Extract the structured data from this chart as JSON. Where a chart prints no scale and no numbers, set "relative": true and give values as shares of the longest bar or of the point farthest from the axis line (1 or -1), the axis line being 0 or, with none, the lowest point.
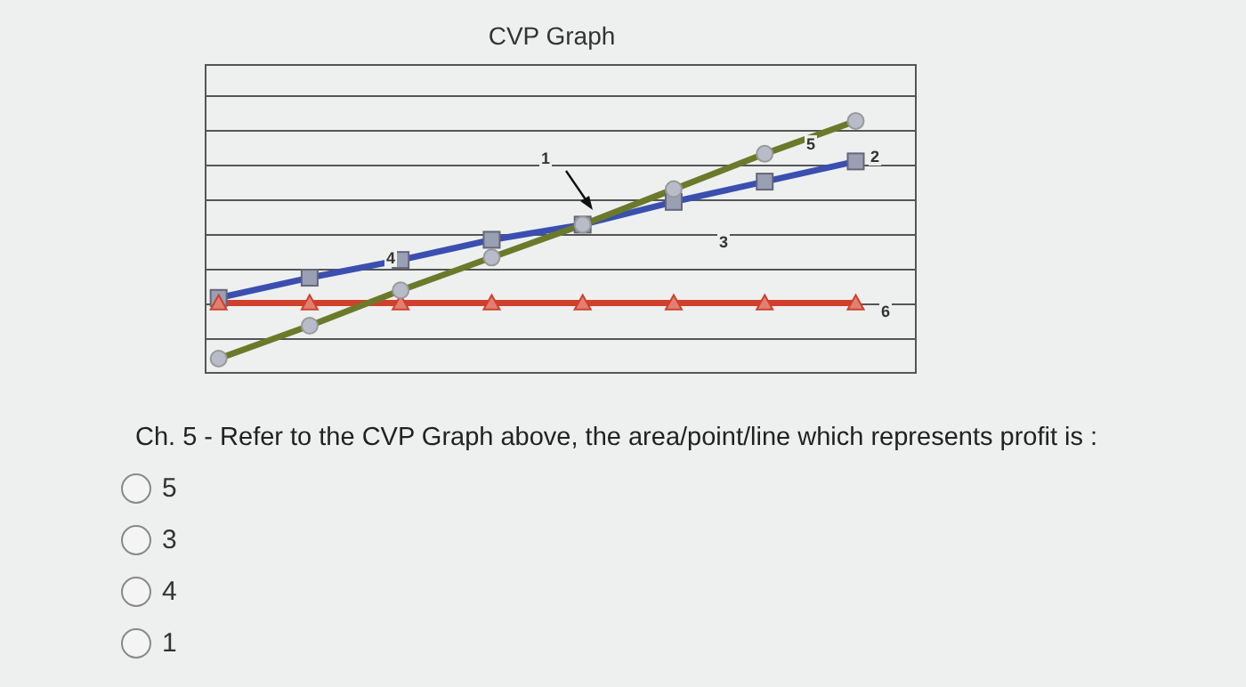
{
  "chart_data": {
    "type": "line",
    "title": "CVP Graph",
    "relative": true,
    "grid": "y",
    "categories": [
      null,
      null,
      null,
      null,
      null,
      null,
      null,
      null
    ],
    "series": [
      {
        "color": "#3a4fb0",
        "marker": "square",
        "values": [
          0.3,
          0.38,
          0.45,
          0.53,
          0.59,
          0.68,
          0.76,
          0.84
        ]
      },
      {
        "color": "#d0402c",
        "marker": "triangle",
        "values": [
          0.28,
          0.28,
          0.28,
          0.28,
          0.28,
          0.28,
          0.28,
          0.28
        ]
      },
      {
        "color": "#6b7a2a",
        "marker": "circle",
        "values": [
          0.06,
          0.19,
          0.33,
          0.46,
          0.59,
          0.73,
          0.87,
          1
        ]
      }
    ],
    "annotations": [
      "1",
      "2",
      "3",
      "4",
      "5",
      "6",
      "Ch. 5 - Refer to the CVP Graph above, the area/point/line which represents profit is :",
      "5",
      "3",
      "4",
      "1"
    ]
  }
}
